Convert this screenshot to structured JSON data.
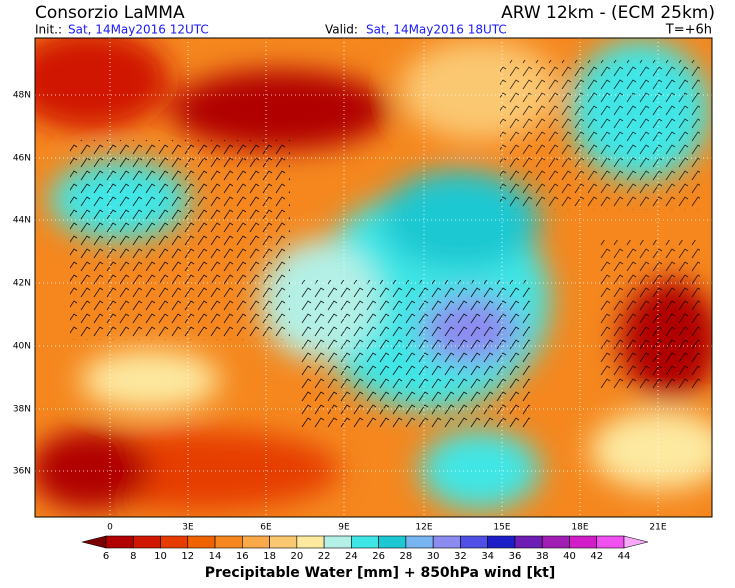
{
  "header": {
    "title": "Consorzio LaMMA",
    "model": "ARW 12km - (ECM 25km)",
    "init_label": "Init.:",
    "init_value": "Sat, 14May2016 12UTC",
    "valid_label": "Valid:",
    "valid_value": "Sat, 14May2016 18UTC",
    "lead": "T=+6h"
  },
  "map": {
    "lat_labels": [
      "48N",
      "46N",
      "44N",
      "42N",
      "40N",
      "38N",
      "36N"
    ],
    "lon_labels": [
      "0",
      "3E",
      "6E",
      "9E",
      "12E",
      "15E",
      "18E",
      "21E"
    ]
  },
  "colorbar": {
    "ticks": [
      6,
      8,
      10,
      12,
      14,
      16,
      18,
      20,
      22,
      24,
      26,
      28,
      30,
      32,
      34,
      36,
      38,
      40,
      42,
      44
    ],
    "colors": [
      "#7a0000",
      "#b00000",
      "#d01800",
      "#e63c00",
      "#f06400",
      "#f5871e",
      "#f9a84a",
      "#fbc872",
      "#fde9a0",
      "#b4f0e6",
      "#40e6e6",
      "#1ec8d2",
      "#78b4f0",
      "#8c8cf0",
      "#5050e6",
      "#1e1ec8",
      "#6e1eb4",
      "#a01eb4",
      "#d21ec8",
      "#f050f0",
      "#f8a8f8"
    ],
    "title": "Precipitable Water [mm] + 850hPa wind [kt]"
  }
}
